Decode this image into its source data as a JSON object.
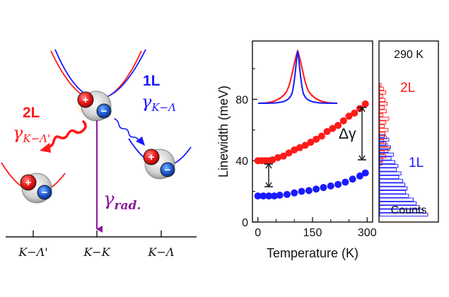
{
  "colors": {
    "red": "#ff1a1a",
    "blue": "#1a1aff",
    "purple": "#8b1a9b",
    "black": "#111111",
    "glow": "#f5b35c",
    "hole_gray": "#9a9a9a"
  },
  "diagram": {
    "left_label": "2L",
    "left_gamma_main": "γ",
    "left_gamma_sub": "K−Λ'",
    "right_label": "1L",
    "right_gamma_main": "γ",
    "right_gamma_sub": "K−Λ",
    "rad_gamma_main": "γ",
    "rad_gamma_sub": "rad.",
    "plus": "+",
    "minus": "−",
    "x_labels": [
      "K−Λ'",
      "K−K",
      "K−Λ"
    ]
  },
  "chart_data": [
    {
      "type": "scatter",
      "xlabel": "Temperature (K)",
      "ylabel": "Linewidth (meV)",
      "xlim": [
        -15,
        315
      ],
      "ylim": [
        0,
        118
      ],
      "xticks": [
        0,
        150,
        300
      ],
      "xticks_minor": [
        50,
        100,
        200,
        250
      ],
      "yticks": [
        0,
        40,
        80
      ],
      "yticks_minor": [
        20,
        60,
        100
      ],
      "annotation": "Δγ",
      "series": [
        {
          "name": "2L",
          "color": "#ff1a1a",
          "x": [
            0,
            10,
            20,
            30,
            40,
            55,
            70,
            85,
            100,
            115,
            130,
            145,
            160,
            175,
            190,
            205,
            220,
            235,
            250,
            265,
            280,
            295
          ],
          "y": [
            40,
            40,
            40,
            40,
            40.5,
            42,
            43,
            45,
            47,
            48.5,
            50,
            52,
            54,
            56,
            59,
            61,
            63,
            66,
            69,
            71,
            74,
            77
          ]
        },
        {
          "name": "1L",
          "color": "#1a1aff",
          "x": [
            0,
            15,
            30,
            45,
            60,
            80,
            100,
            120,
            140,
            160,
            180,
            200,
            220,
            240,
            260,
            280,
            295
          ],
          "y": [
            17,
            17,
            17,
            17,
            17.5,
            18,
            19,
            20,
            20.5,
            21.5,
            22.5,
            23.5,
            24.5,
            26,
            28,
            30,
            32
          ]
        }
      ]
    },
    {
      "type": "bar",
      "title": "290 K",
      "xlabel": "Counts",
      "series": [
        {
          "name": "2L",
          "color": "#ff1a1a",
          "values": [
            2,
            5,
            8,
            4,
            7,
            10,
            6,
            9,
            4,
            12,
            8,
            6,
            11,
            7,
            9,
            5,
            10,
            13,
            6,
            8,
            4,
            3
          ]
        },
        {
          "name": "1L",
          "color": "#1a1aff",
          "values": [
            6,
            12,
            8,
            14,
            11,
            18,
            15,
            20,
            24,
            22,
            28,
            25,
            30,
            33,
            36,
            34,
            38,
            44,
            48,
            52,
            57,
            63
          ]
        }
      ]
    }
  ]
}
